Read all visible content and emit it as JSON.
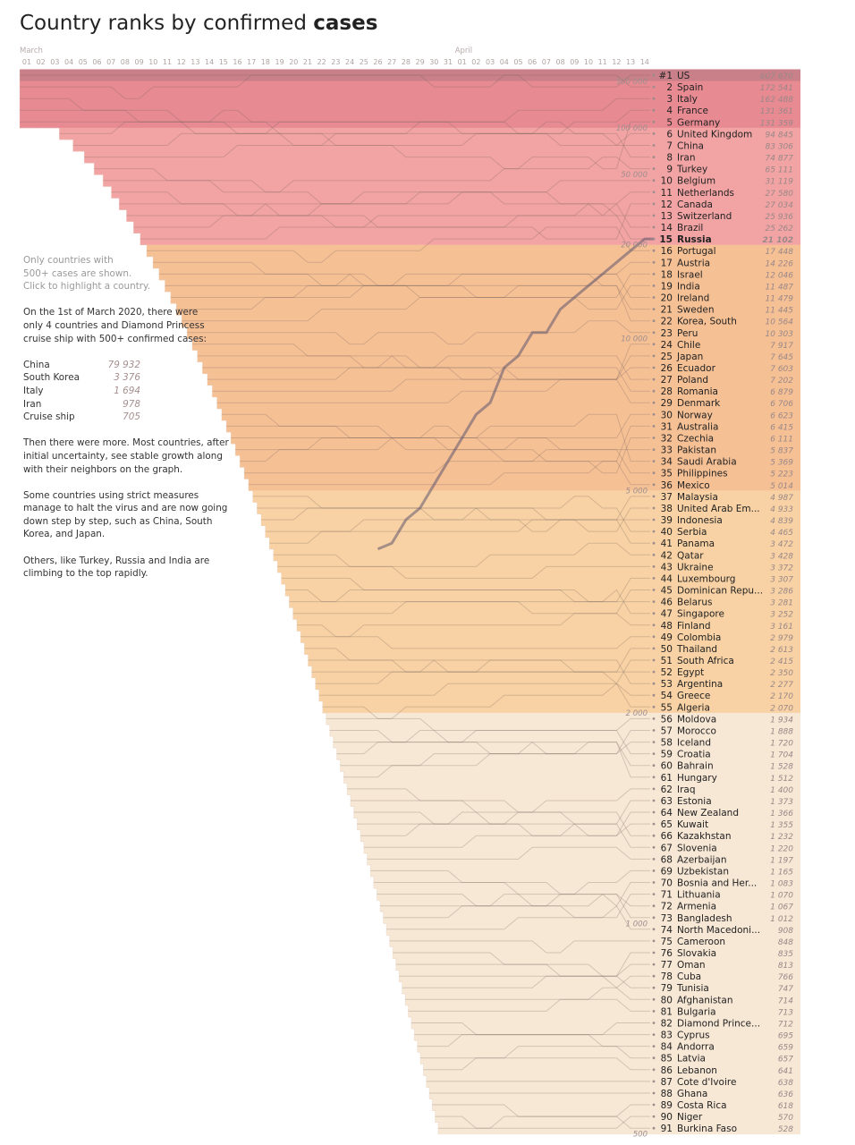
{
  "title": {
    "prefix": "Country ranks by confirmed ",
    "bold": "cases"
  },
  "notes": {
    "hint_line1": "Only countries with",
    "hint_line2": "500+ cases are shown.",
    "hint_line3": "Click to highlight a country.",
    "p1_line1": "On the 1st of March 2020, there were",
    "p1_line2": "only 4 countries and Diamond Princess",
    "p1_line3": "cruise ship with 500+ confirmed cases:",
    "initial": [
      {
        "name": "China",
        "value": "79 932"
      },
      {
        "name": "South Korea",
        "value": "3 376"
      },
      {
        "name": "Italy",
        "value": "1 694"
      },
      {
        "name": "Iran",
        "value": "978"
      },
      {
        "name": "Cruise ship",
        "value": "705"
      }
    ],
    "p2_line1": "Then there were more. Most countries, after",
    "p2_line2": "initial uncertainty, see stable growth along",
    "p2_line3": "with their neighbors on the graph.",
    "p3_line1": "Some countries using strict measures",
    "p3_line2": "manage to halt the virus and are now going",
    "p3_line3": "down step by step, such as China, South",
    "p3_line4": "Korea, and Japan.",
    "p4_line1": "Others, like Turkey, Russia and India are",
    "p4_line2": "climbing to the top rapidly."
  },
  "chart_data": {
    "type": "bump",
    "x_axis": {
      "months": [
        {
          "label": "March",
          "day_index": 0
        },
        {
          "label": "April",
          "day_index": 31
        }
      ],
      "days": [
        "01",
        "02",
        "03",
        "04",
        "05",
        "06",
        "07",
        "08",
        "09",
        "10",
        "11",
        "12",
        "13",
        "14",
        "15",
        "16",
        "17",
        "18",
        "19",
        "20",
        "21",
        "22",
        "23",
        "24",
        "25",
        "26",
        "27",
        "28",
        "29",
        "30",
        "31",
        "01",
        "02",
        "03",
        "04",
        "05",
        "06",
        "07",
        "08",
        "09",
        "10",
        "11",
        "12",
        "13",
        "14"
      ]
    },
    "thresholds": [
      "500 000",
      "100 000",
      "50 000",
      "20 000",
      "10 000",
      "5 000",
      "2 000",
      "1 000",
      "500"
    ],
    "tiers": [
      {
        "min": 500000,
        "color": "#c98088"
      },
      {
        "min": 100000,
        "color": "#e78a92"
      },
      {
        "min": 20000,
        "color": "#f2a3a3"
      },
      {
        "min": 5000,
        "color": "#f6c095"
      },
      {
        "min": 2000,
        "color": "#f8d2a4"
      },
      {
        "min": 500,
        "color": "#f7e7d5"
      }
    ],
    "highlight": {
      "rank": 15,
      "country": "Russia",
      "color": "#1b1b7a"
    },
    "rows": [
      {
        "rank": "#1",
        "country": "US",
        "value": "607 670",
        "n": 607670
      },
      {
        "rank": "2",
        "country": "Spain",
        "value": "172 541",
        "n": 172541
      },
      {
        "rank": "3",
        "country": "Italy",
        "value": "162 488",
        "n": 162488
      },
      {
        "rank": "4",
        "country": "France",
        "value": "131 361",
        "n": 131361
      },
      {
        "rank": "5",
        "country": "Germany",
        "value": "131 359",
        "n": 131359
      },
      {
        "rank": "6",
        "country": "United Kingdom",
        "value": "94 845",
        "n": 94845
      },
      {
        "rank": "7",
        "country": "China",
        "value": "83 306",
        "n": 83306
      },
      {
        "rank": "8",
        "country": "Iran",
        "value": "74 877",
        "n": 74877
      },
      {
        "rank": "9",
        "country": "Turkey",
        "value": "65 111",
        "n": 65111
      },
      {
        "rank": "10",
        "country": "Belgium",
        "value": "31 119",
        "n": 31119
      },
      {
        "rank": "11",
        "country": "Netherlands",
        "value": "27 580",
        "n": 27580
      },
      {
        "rank": "12",
        "country": "Canada",
        "value": "27 034",
        "n": 27034
      },
      {
        "rank": "13",
        "country": "Switzerland",
        "value": "25 936",
        "n": 25936
      },
      {
        "rank": "14",
        "country": "Brazil",
        "value": "25 262",
        "n": 25262
      },
      {
        "rank": "15",
        "country": "Russia",
        "value": "21 102",
        "n": 21102
      },
      {
        "rank": "16",
        "country": "Portugal",
        "value": "17 448",
        "n": 17448
      },
      {
        "rank": "17",
        "country": "Austria",
        "value": "14 226",
        "n": 14226
      },
      {
        "rank": "18",
        "country": "Israel",
        "value": "12 046",
        "n": 12046
      },
      {
        "rank": "19",
        "country": "India",
        "value": "11 487",
        "n": 11487
      },
      {
        "rank": "20",
        "country": "Ireland",
        "value": "11 479",
        "n": 11479
      },
      {
        "rank": "21",
        "country": "Sweden",
        "value": "11 445",
        "n": 11445
      },
      {
        "rank": "22",
        "country": "Korea, South",
        "value": "10 564",
        "n": 10564
      },
      {
        "rank": "23",
        "country": "Peru",
        "value": "10 303",
        "n": 10303
      },
      {
        "rank": "24",
        "country": "Chile",
        "value": "7 917",
        "n": 7917
      },
      {
        "rank": "25",
        "country": "Japan",
        "value": "7 645",
        "n": 7645
      },
      {
        "rank": "26",
        "country": "Ecuador",
        "value": "7 603",
        "n": 7603
      },
      {
        "rank": "27",
        "country": "Poland",
        "value": "7 202",
        "n": 7202
      },
      {
        "rank": "28",
        "country": "Romania",
        "value": "6 879",
        "n": 6879
      },
      {
        "rank": "29",
        "country": "Denmark",
        "value": "6 706",
        "n": 6706
      },
      {
        "rank": "30",
        "country": "Norway",
        "value": "6 623",
        "n": 6623
      },
      {
        "rank": "31",
        "country": "Australia",
        "value": "6 415",
        "n": 6415
      },
      {
        "rank": "32",
        "country": "Czechia",
        "value": "6 111",
        "n": 6111
      },
      {
        "rank": "33",
        "country": "Pakistan",
        "value": "5 837",
        "n": 5837
      },
      {
        "rank": "34",
        "country": "Saudi Arabia",
        "value": "5 369",
        "n": 5369
      },
      {
        "rank": "35",
        "country": "Philippines",
        "value": "5 223",
        "n": 5223
      },
      {
        "rank": "36",
        "country": "Mexico",
        "value": "5 014",
        "n": 5014
      },
      {
        "rank": "37",
        "country": "Malaysia",
        "value": "4 987",
        "n": 4987
      },
      {
        "rank": "38",
        "country": "United Arab Em...",
        "value": "4 933",
        "n": 4933
      },
      {
        "rank": "39",
        "country": "Indonesia",
        "value": "4 839",
        "n": 4839
      },
      {
        "rank": "40",
        "country": "Serbia",
        "value": "4 465",
        "n": 4465
      },
      {
        "rank": "41",
        "country": "Panama",
        "value": "3 472",
        "n": 3472
      },
      {
        "rank": "42",
        "country": "Qatar",
        "value": "3 428",
        "n": 3428
      },
      {
        "rank": "43",
        "country": "Ukraine",
        "value": "3 372",
        "n": 3372
      },
      {
        "rank": "44",
        "country": "Luxembourg",
        "value": "3 307",
        "n": 3307
      },
      {
        "rank": "45",
        "country": "Dominican Repu...",
        "value": "3 286",
        "n": 3286
      },
      {
        "rank": "46",
        "country": "Belarus",
        "value": "3 281",
        "n": 3281
      },
      {
        "rank": "47",
        "country": "Singapore",
        "value": "3 252",
        "n": 3252
      },
      {
        "rank": "48",
        "country": "Finland",
        "value": "3 161",
        "n": 3161
      },
      {
        "rank": "49",
        "country": "Colombia",
        "value": "2 979",
        "n": 2979
      },
      {
        "rank": "50",
        "country": "Thailand",
        "value": "2 613",
        "n": 2613
      },
      {
        "rank": "51",
        "country": "South Africa",
        "value": "2 415",
        "n": 2415
      },
      {
        "rank": "52",
        "country": "Egypt",
        "value": "2 350",
        "n": 2350
      },
      {
        "rank": "53",
        "country": "Argentina",
        "value": "2 277",
        "n": 2277
      },
      {
        "rank": "54",
        "country": "Greece",
        "value": "2 170",
        "n": 2170
      },
      {
        "rank": "55",
        "country": "Algeria",
        "value": "2 070",
        "n": 2070
      },
      {
        "rank": "56",
        "country": "Moldova",
        "value": "1 934",
        "n": 1934
      },
      {
        "rank": "57",
        "country": "Morocco",
        "value": "1 888",
        "n": 1888
      },
      {
        "rank": "58",
        "country": "Iceland",
        "value": "1 720",
        "n": 1720
      },
      {
        "rank": "59",
        "country": "Croatia",
        "value": "1 704",
        "n": 1704
      },
      {
        "rank": "60",
        "country": "Bahrain",
        "value": "1 528",
        "n": 1528
      },
      {
        "rank": "61",
        "country": "Hungary",
        "value": "1 512",
        "n": 1512
      },
      {
        "rank": "62",
        "country": "Iraq",
        "value": "1 400",
        "n": 1400
      },
      {
        "rank": "63",
        "country": "Estonia",
        "value": "1 373",
        "n": 1373
      },
      {
        "rank": "64",
        "country": "New Zealand",
        "value": "1 366",
        "n": 1366
      },
      {
        "rank": "65",
        "country": "Kuwait",
        "value": "1 355",
        "n": 1355
      },
      {
        "rank": "66",
        "country": "Kazakhstan",
        "value": "1 232",
        "n": 1232
      },
      {
        "rank": "67",
        "country": "Slovenia",
        "value": "1 220",
        "n": 1220
      },
      {
        "rank": "68",
        "country": "Azerbaijan",
        "value": "1 197",
        "n": 1197
      },
      {
        "rank": "69",
        "country": "Uzbekistan",
        "value": "1 165",
        "n": 1165
      },
      {
        "rank": "70",
        "country": "Bosnia and Her...",
        "value": "1 083",
        "n": 1083
      },
      {
        "rank": "71",
        "country": "Lithuania",
        "value": "1 070",
        "n": 1070
      },
      {
        "rank": "72",
        "country": "Armenia",
        "value": "1 067",
        "n": 1067
      },
      {
        "rank": "73",
        "country": "Bangladesh",
        "value": "1 012",
        "n": 1012
      },
      {
        "rank": "74",
        "country": "North Macedoni...",
        "value": "908",
        "n": 908
      },
      {
        "rank": "75",
        "country": "Cameroon",
        "value": "848",
        "n": 848
      },
      {
        "rank": "76",
        "country": "Slovakia",
        "value": "835",
        "n": 835
      },
      {
        "rank": "77",
        "country": "Oman",
        "value": "813",
        "n": 813
      },
      {
        "rank": "78",
        "country": "Cuba",
        "value": "766",
        "n": 766
      },
      {
        "rank": "79",
        "country": "Tunisia",
        "value": "747",
        "n": 747
      },
      {
        "rank": "80",
        "country": "Afghanistan",
        "value": "714",
        "n": 714
      },
      {
        "rank": "81",
        "country": "Bulgaria",
        "value": "713",
        "n": 713
      },
      {
        "rank": "82",
        "country": "Diamond Prince...",
        "value": "712",
        "n": 712
      },
      {
        "rank": "83",
        "country": "Cyprus",
        "value": "695",
        "n": 695
      },
      {
        "rank": "84",
        "country": "Andorra",
        "value": "659",
        "n": 659
      },
      {
        "rank": "85",
        "country": "Latvia",
        "value": "657",
        "n": 657
      },
      {
        "rank": "86",
        "country": "Lebanon",
        "value": "641",
        "n": 641
      },
      {
        "rank": "87",
        "country": "Cote d'Ivoire",
        "value": "638",
        "n": 638
      },
      {
        "rank": "88",
        "country": "Ghana",
        "value": "636",
        "n": 636
      },
      {
        "rank": "89",
        "country": "Costa Rica",
        "value": "618",
        "n": 618
      },
      {
        "rank": "90",
        "country": "Niger",
        "value": "570",
        "n": 570
      },
      {
        "rank": "91",
        "country": "Burkina Faso",
        "value": "528",
        "n": 528
      }
    ]
  }
}
